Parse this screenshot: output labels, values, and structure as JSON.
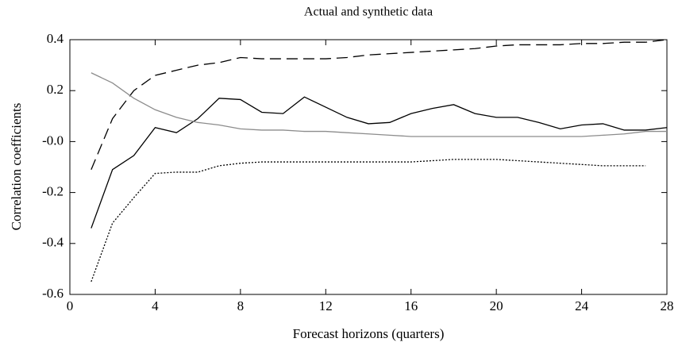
{
  "chart_data": {
    "type": "line",
    "title": "Actual and synthetic data",
    "x_label": "Forecast horizons (quarters)",
    "y_label": "Correlation coefficients",
    "x": [
      1,
      2,
      3,
      4,
      5,
      6,
      7,
      8,
      9,
      10,
      11,
      12,
      13,
      14,
      15,
      16,
      17,
      18,
      19,
      20,
      21,
      22,
      23,
      24,
      25,
      26,
      27,
      28
    ],
    "series": [
      {
        "color": "#000000",
        "dash": "solid",
        "values": [
          -0.34,
          -0.11,
          -0.055,
          0.055,
          0.035,
          0.09,
          0.17,
          0.165,
          0.115,
          0.11,
          0.175,
          0.135,
          0.095,
          0.07,
          0.075,
          0.11,
          0.13,
          0.145,
          0.11,
          0.095,
          0.095,
          0.075,
          0.05,
          0.065,
          0.07,
          0.045,
          0.045,
          0.055
        ]
      },
      {
        "color": "#000000",
        "dash": "dashed",
        "values": [
          -0.11,
          0.09,
          0.2,
          0.26,
          0.28,
          0.3,
          0.31,
          0.33,
          0.325,
          0.325,
          0.325,
          0.325,
          0.33,
          0.34,
          0.345,
          0.35,
          0.355,
          0.36,
          0.365,
          0.375,
          0.38,
          0.38,
          0.38,
          0.385,
          0.385,
          0.39,
          0.39,
          0.4
        ]
      },
      {
        "color": "#8c8c8c",
        "dash": "solid",
        "values": [
          0.27,
          0.23,
          0.17,
          0.125,
          0.095,
          0.075,
          0.065,
          0.05,
          0.045,
          0.045,
          0.04,
          0.04,
          0.035,
          0.03,
          0.025,
          0.02,
          0.02,
          0.02,
          0.02,
          0.02,
          0.02,
          0.02,
          0.02,
          0.02,
          0.025,
          0.03,
          0.04,
          0.04
        ]
      },
      {
        "color": "#000000",
        "dash": "dotted",
        "values": [
          -0.55,
          -0.32,
          -0.22,
          -0.125,
          -0.12,
          -0.12,
          -0.095,
          -0.085,
          -0.08,
          -0.08,
          -0.08,
          -0.08,
          -0.08,
          -0.08,
          -0.08,
          -0.08,
          -0.075,
          -0.07,
          -0.07,
          -0.07,
          -0.075,
          -0.08,
          -0.085,
          -0.09,
          -0.095,
          -0.095,
          -0.095,
          null
        ]
      }
    ],
    "xlim": [
      0,
      28
    ],
    "xticks": [
      0,
      4,
      8,
      12,
      16,
      20,
      24,
      28
    ],
    "ylim": [
      -0.6,
      0.4
    ],
    "yticks": [
      -0.6,
      -0.4,
      -0.2,
      {
        "value": 0,
        "label": "-0.0"
      },
      0.2,
      0.4
    ]
  }
}
